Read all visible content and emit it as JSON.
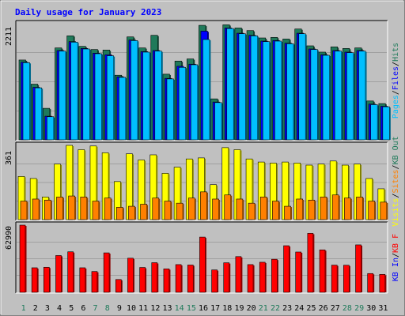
{
  "chart_data": {
    "type": "bar",
    "title": "Daily usage for January 2023",
    "categories": [
      "1",
      "2",
      "3",
      "4",
      "5",
      "6",
      "7",
      "8",
      "9",
      "10",
      "11",
      "12",
      "13",
      "14",
      "15",
      "16",
      "17",
      "18",
      "19",
      "20",
      "21",
      "22",
      "23",
      "24",
      "25",
      "26",
      "27",
      "28",
      "29",
      "30",
      "31"
    ],
    "weekend_days": [
      "1",
      "7",
      "8",
      "14",
      "15",
      "21",
      "22",
      "28",
      "29"
    ],
    "panels": [
      {
        "id": "hits",
        "max_label": "2211",
        "ymax": 2211,
        "legend": [
          "Pages",
          "/",
          "Files",
          "/",
          "Hits"
        ],
        "series": [
          {
            "name": "Hits",
            "color": "#1f7a5a",
            "values": [
              1520,
              1060,
              600,
              1750,
              1980,
              1780,
              1720,
              1710,
              1230,
              1960,
              1750,
              1990,
              1250,
              1500,
              1540,
              2180,
              780,
              2190,
              2130,
              2080,
              1940,
              1950,
              1920,
              2110,
              1790,
              1670,
              1770,
              1740,
              1750,
              740,
              690
            ]
          },
          {
            "name": "Files",
            "color": "#0000ff",
            "values": [
              1480,
              1000,
              450,
              1700,
              1870,
              1740,
              1650,
              1620,
              1200,
              1900,
              1680,
              1700,
              1170,
              1400,
              1440,
              2070,
              720,
              2130,
              2030,
              1990,
              1880,
              1890,
              1840,
              2030,
              1730,
              1620,
              1700,
              1670,
              1700,
              680,
              640
            ]
          },
          {
            "name": "Pages",
            "color": "#00bfff",
            "values": [
              1470,
              990,
              440,
              1690,
              1860,
              1730,
              1640,
              1600,
              1190,
              1890,
              1670,
              1690,
              1160,
              1380,
              1430,
              1910,
              710,
              2120,
              2020,
              1980,
              1870,
              1880,
              1830,
              2020,
              1720,
              1610,
              1690,
              1660,
              1690,
              670,
              630
            ]
          }
        ]
      },
      {
        "id": "visits",
        "max_label": "361",
        "ymax": 361,
        "legend": [
          "Visits",
          "/",
          "Sites",
          "/",
          "KB Out"
        ],
        "series": [
          {
            "name": "Visits",
            "color": "#ffff00",
            "values": [
              210,
              200,
              110,
              270,
              361,
              340,
              358,
              325,
              185,
              320,
              290,
              315,
              225,
              255,
              295,
              300,
              170,
              350,
              340,
              295,
              280,
              275,
              280,
              275,
              265,
              270,
              285,
              265,
              270,
              200,
              150
            ]
          },
          {
            "name": "Sites",
            "color": "#ff8000",
            "values": [
              90,
              100,
              95,
              110,
              115,
              110,
              90,
              105,
              60,
              65,
              75,
              105,
              90,
              80,
              105,
              135,
              100,
              120,
              100,
              80,
              110,
              90,
              65,
              100,
              95,
              110,
              120,
              105,
              110,
              90,
              85
            ]
          }
        ]
      },
      {
        "id": "kb",
        "max_label": "62990",
        "ymax": 62990,
        "legend": [
          "KB In",
          "/",
          "KB F"
        ],
        "series": [
          {
            "name": "KB F",
            "color": "#ff0000",
            "values": [
              62990,
              23000,
              23500,
              34500,
              38000,
              23000,
              19500,
              37000,
              12000,
              32000,
              23300,
              27800,
              22000,
              26000,
              25600,
              51800,
              21000,
              27700,
              33500,
              26000,
              28200,
              31000,
              43700,
              37800,
              55300,
              39800,
              25500,
              25400,
              44500,
              17600,
              16800
            ]
          }
        ]
      }
    ],
    "legend_colors": {
      "Pages": "#00bfff",
      "Files": "#0000ff",
      "Hits": "#1f7a5a",
      "Visits": "#ffff00",
      "Sites": "#ff8000",
      "KB Out": "#1f7a5a",
      "KB In": "#0000ff",
      "KB F": "#ff0000",
      "/": "#000000"
    },
    "grid": true
  }
}
